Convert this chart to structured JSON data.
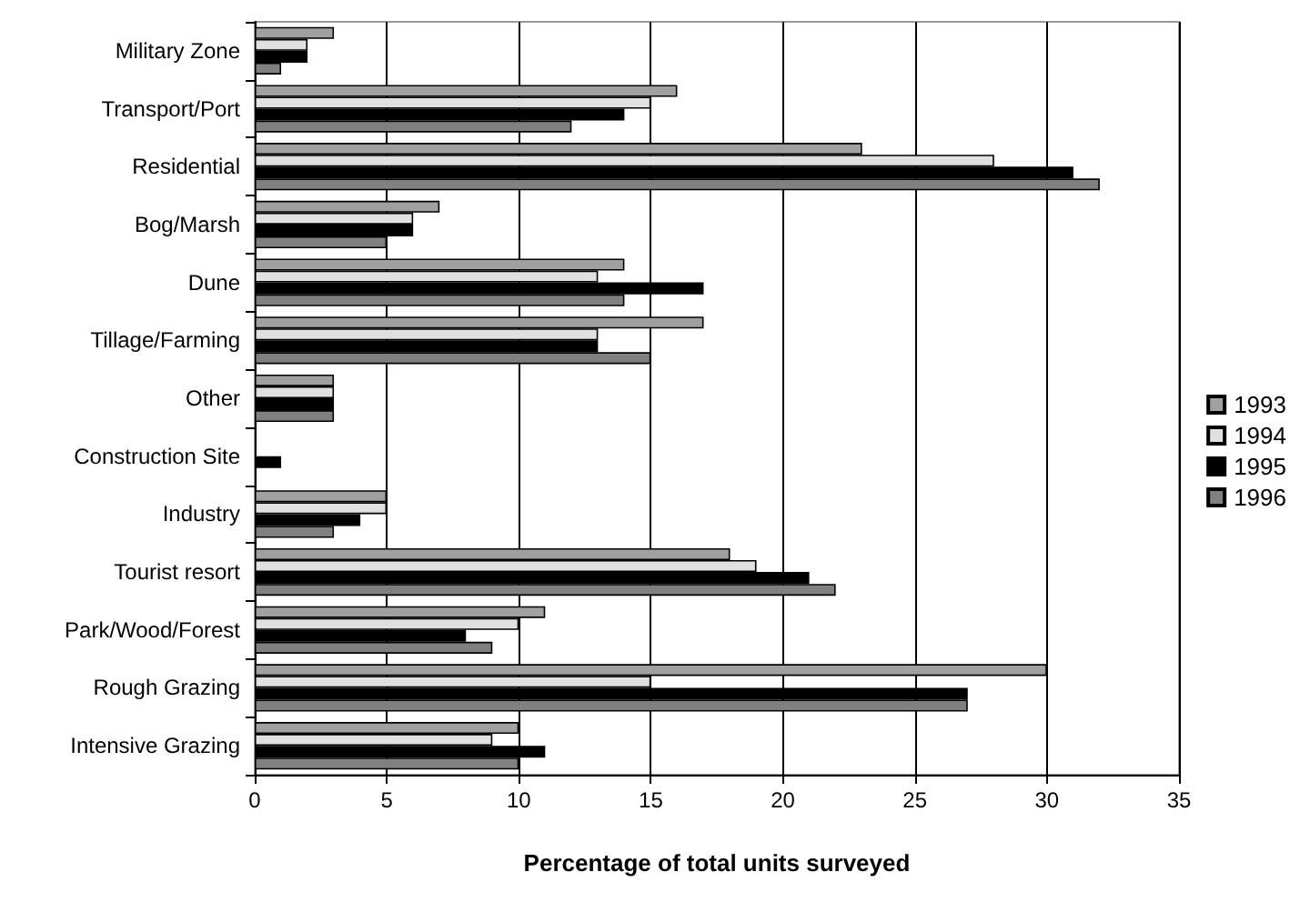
{
  "chart_data": {
    "type": "bar",
    "orientation": "horizontal",
    "xlabel": "Percentage of total units surveyed",
    "categories": [
      "Military Zone",
      "Transport/Port",
      "Residential",
      "Bog/Marsh",
      "Dune",
      "Tillage/Farming",
      "Other",
      "Construction Site",
      "Industry",
      "Tourist resort",
      "Park/Wood/Forest",
      "Rough Grazing",
      "Intensive Grazing"
    ],
    "series": [
      {
        "name": "1993",
        "color": "#a0a0a0",
        "values": [
          3,
          16,
          23,
          7,
          14,
          17,
          3,
          0,
          5,
          18,
          11,
          30,
          10
        ]
      },
      {
        "name": "1994",
        "color": "#e0e0e0",
        "values": [
          2,
          15,
          28,
          6,
          13,
          13,
          3,
          0,
          5,
          19,
          10,
          15,
          9
        ]
      },
      {
        "name": "1995",
        "color": "#000000",
        "values": [
          2,
          14,
          31,
          6,
          17,
          13,
          3,
          1,
          4,
          21,
          8,
          27,
          11
        ]
      },
      {
        "name": "1996",
        "color": "#808080",
        "values": [
          1,
          12,
          32,
          5,
          14,
          15,
          3,
          0,
          3,
          22,
          9,
          27,
          10
        ]
      }
    ],
    "xlim": [
      0,
      35
    ],
    "xticks": [
      0,
      5,
      10,
      15,
      20,
      25,
      30,
      35
    ],
    "grid": "x",
    "legend": "right"
  }
}
